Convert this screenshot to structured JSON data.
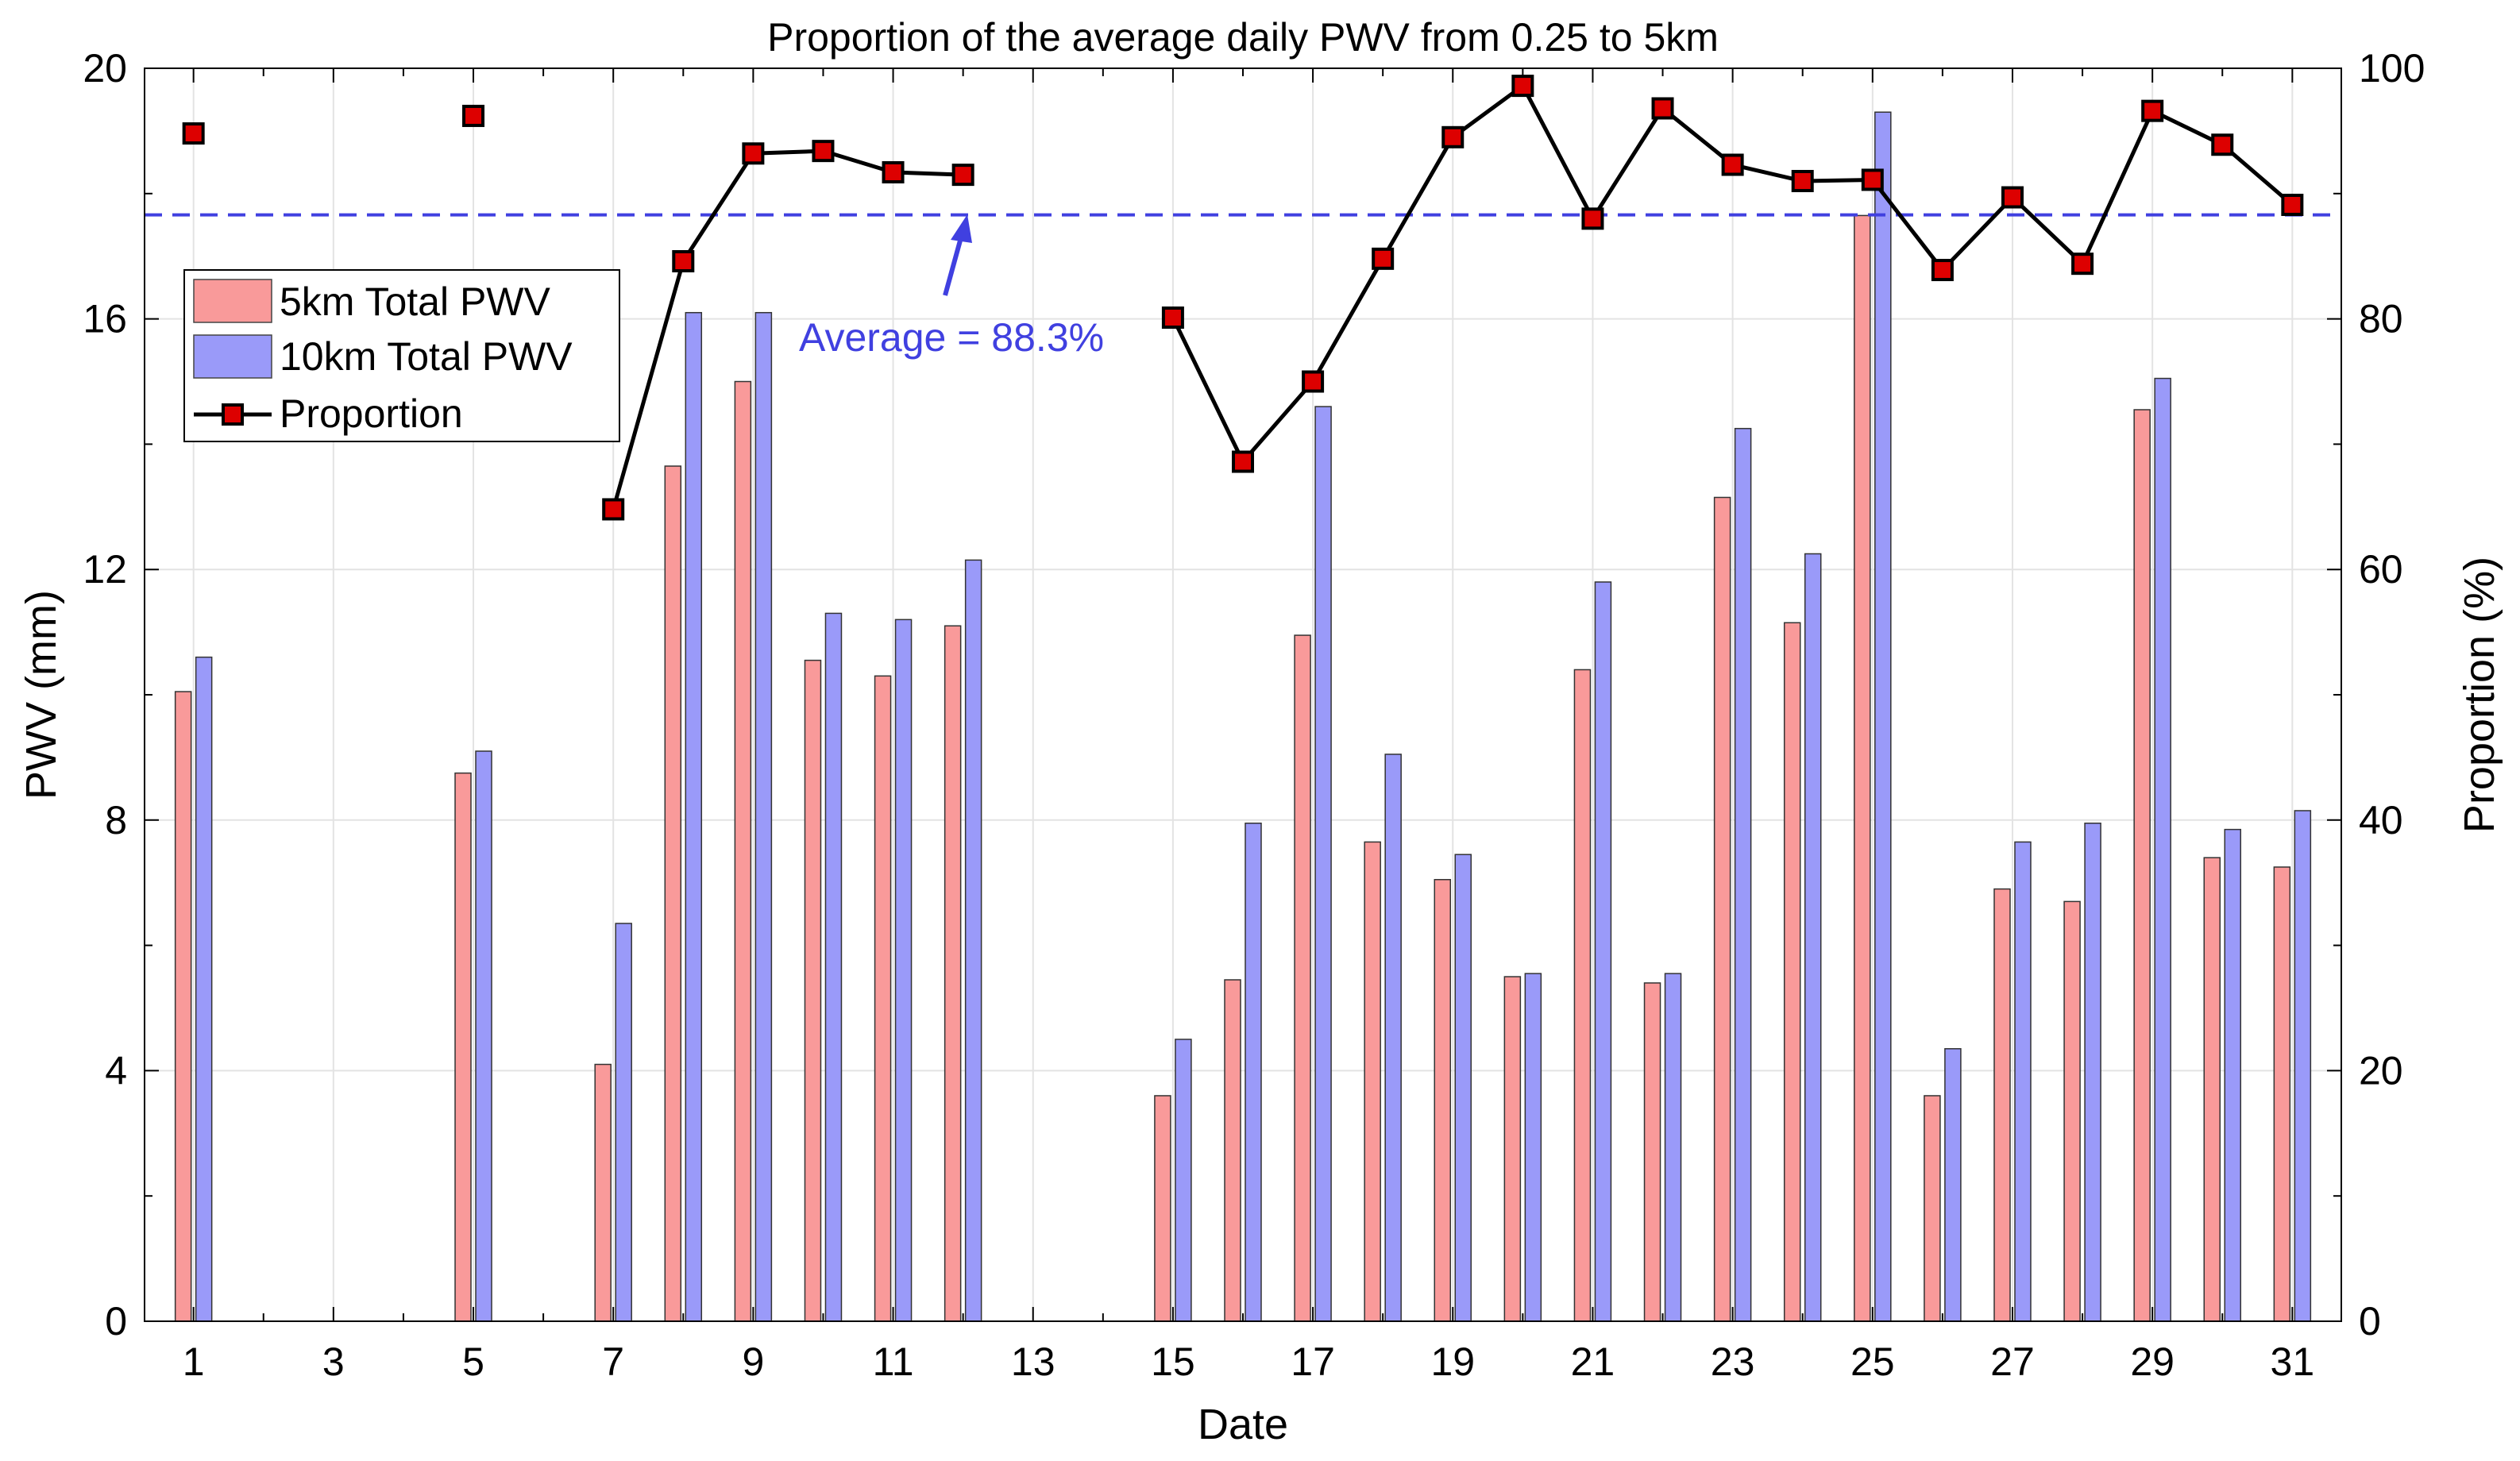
{
  "chart_data": {
    "type": "bar+line",
    "title": "Proportion of the average daily PWV from 0.25 to 5km",
    "xlabel": "Date",
    "ylabel": "PWV (mm)",
    "y2label": "Proportion (%)",
    "xlim": [
      0.3,
      31.7
    ],
    "ylim": [
      0,
      20
    ],
    "y2lim": [
      0,
      100
    ],
    "xticks": [
      1,
      3,
      5,
      7,
      9,
      11,
      13,
      15,
      17,
      19,
      21,
      23,
      25,
      27,
      29,
      31
    ],
    "xtick_labels": [
      "1",
      "3",
      "5",
      "7",
      "9",
      "11",
      "13",
      "15",
      "17",
      "19",
      "21",
      "23",
      "25",
      "27",
      "29",
      "31"
    ],
    "yticks": [
      0,
      4,
      8,
      12,
      16,
      20
    ],
    "ytick_labels": [
      "0",
      "4",
      "8",
      "12",
      "16",
      "20"
    ],
    "y2ticks": [
      0,
      20,
      40,
      60,
      80,
      100
    ],
    "y2tick_labels": [
      "0",
      "20",
      "40",
      "60",
      "80",
      "100"
    ],
    "grid": true,
    "legend_position": "upper-left",
    "days": [
      1,
      5,
      7,
      8,
      9,
      10,
      11,
      12,
      15,
      16,
      17,
      18,
      19,
      20,
      21,
      22,
      23,
      24,
      25,
      26,
      27,
      28,
      29,
      30,
      31
    ],
    "series": [
      {
        "name": "5km Total PWV",
        "kind": "bar",
        "axis": "left",
        "color": "#f99a9a",
        "values": [
          10.05,
          8.75,
          4.1,
          13.65,
          15.0,
          10.55,
          10.3,
          11.1,
          3.6,
          5.45,
          10.95,
          7.65,
          7.05,
          5.5,
          10.4,
          5.4,
          13.15,
          11.15,
          17.65,
          3.6,
          6.9,
          6.7,
          14.55,
          7.4,
          7.25
        ]
      },
      {
        "name": "10km Total PWV",
        "kind": "bar",
        "axis": "left",
        "color": "#9a9af9",
        "values": [
          10.6,
          9.1,
          6.35,
          16.1,
          16.1,
          11.3,
          11.2,
          12.15,
          4.5,
          7.95,
          14.6,
          9.05,
          7.45,
          5.55,
          11.8,
          5.55,
          14.25,
          12.25,
          19.3,
          4.35,
          7.65,
          7.95,
          15.05,
          7.85,
          8.15
        ]
      },
      {
        "name": "Proportion",
        "kind": "line",
        "axis": "right",
        "color": "#000000",
        "marker_color": "#dd0000",
        "values": [
          94.8,
          96.2,
          64.8,
          84.6,
          93.2,
          93.4,
          91.7,
          91.5,
          80.1,
          68.6,
          75.0,
          84.8,
          94.5,
          98.6,
          88.0,
          96.8,
          92.3,
          91.0,
          91.1,
          83.9,
          89.7,
          84.4,
          96.6,
          93.9,
          89.1
        ]
      }
    ],
    "average_line": {
      "value": 88.3,
      "label": "Average = 88.3%",
      "color": "#4040e0"
    }
  }
}
